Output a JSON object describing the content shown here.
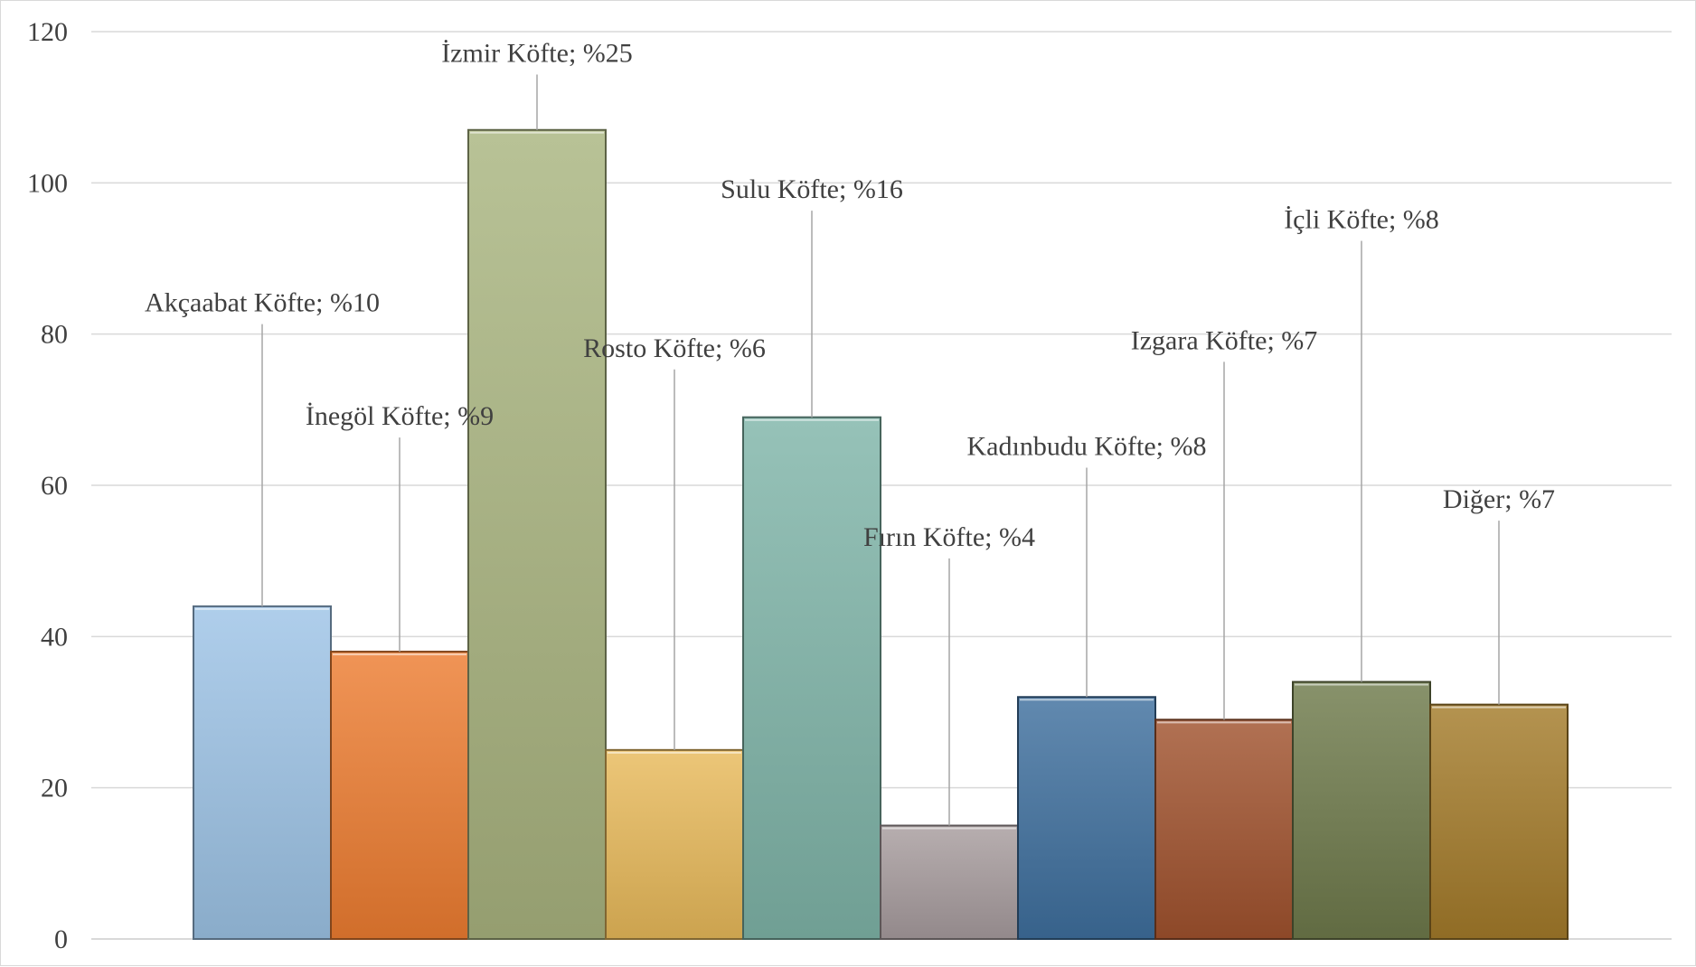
{
  "chart_data": {
    "type": "bar",
    "categories": [
      "Akçaabat Köfte",
      "İnegöl Köfte",
      "İzmir Köfte",
      "Rosto Köfte",
      "Sulu Köfte",
      "Fırın Köfte",
      "Kadınbudu Köfte",
      "Izgara Köfte",
      "İçli Köfte",
      "Diğer"
    ],
    "values": [
      44,
      38,
      107,
      25,
      69,
      15,
      32,
      29,
      34,
      31
    ],
    "data_labels": [
      "Akçaabat Köfte; %10",
      "İnegöl Köfte; %9",
      "İzmir Köfte; %25",
      "Rosto Köfte; %6",
      "Sulu Köfte; %16",
      "Fırın Köfte; %4",
      "Kadınbudu Köfte; %8",
      "Izgara Köfte; %7",
      "İçli Köfte; %8",
      "Diğer; %7"
    ],
    "label_levels": [
      83,
      68,
      116,
      77,
      98,
      52,
      64,
      78,
      94,
      57
    ],
    "colors": [
      "#9dc3e6",
      "#ed7d31",
      "#a9b47f",
      "#e8b95a",
      "#7fb5a8",
      "#a79c9e",
      "#3e6f9e",
      "#a0522d",
      "#6e7a4b",
      "#a47b2a"
    ],
    "ylim": [
      0,
      120
    ],
    "yticks": [
      "0",
      "20",
      "40",
      "60",
      "80",
      "100",
      "120"
    ],
    "grid": true,
    "title": "",
    "xlabel": "",
    "ylabel": ""
  }
}
